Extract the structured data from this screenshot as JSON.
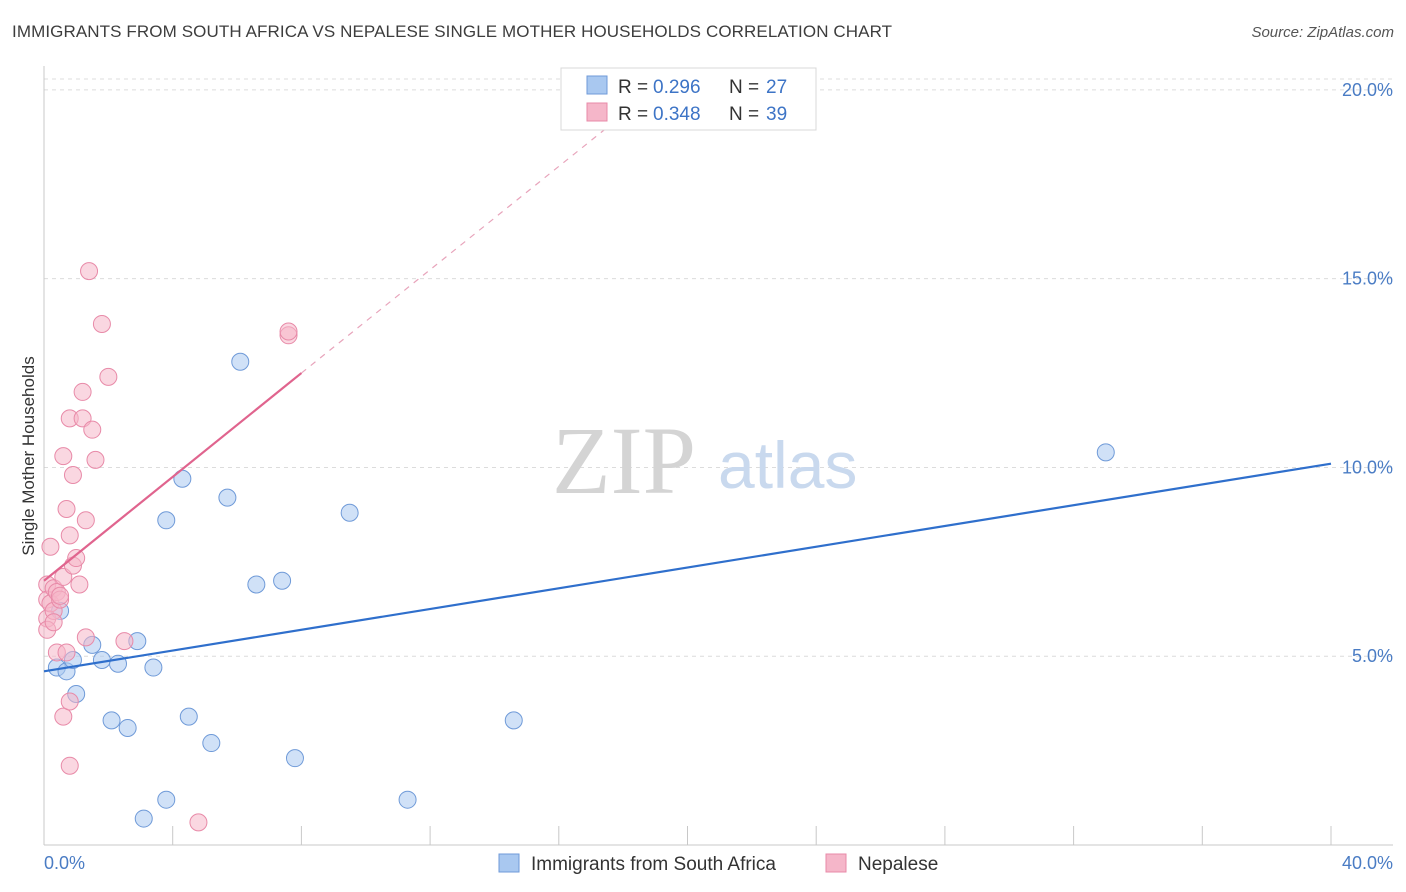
{
  "title": "IMMIGRANTS FROM SOUTH AFRICA VS NEPALESE SINGLE MOTHER HOUSEHOLDS CORRELATION CHART",
  "source": "Source: ZipAtlas.com",
  "watermark": {
    "zip": "ZIP",
    "atlas": "atlas"
  },
  "colors": {
    "blue_fill": "#a9c8f0",
    "blue_stroke": "#6f9ad8",
    "blue_line": "#2f6fcc",
    "pink_fill": "#f5b6c9",
    "pink_stroke": "#e88aa8",
    "pink_line": "#e0648e",
    "grid": "#dcdcdc",
    "tick_text": "#4a7cc4"
  },
  "chart_data": {
    "type": "scatter",
    "title": "IMMIGRANTS FROM SOUTH AFRICA VS NEPALESE SINGLE MOTHER HOUSEHOLDS CORRELATION CHART",
    "xlabel": "",
    "ylabel": "Single Mother Households",
    "xlim": [
      0,
      40
    ],
    "ylim": [
      0,
      20.5
    ],
    "x_tick_labels": [
      {
        "value": 0,
        "label": "0.0%"
      },
      {
        "value": 40,
        "label": "40.0%"
      }
    ],
    "x_minor_ticks": [
      4,
      8,
      12,
      16,
      20,
      24,
      28,
      32,
      36,
      40
    ],
    "y_ticks": [
      {
        "value": 5,
        "label": "5.0%"
      },
      {
        "value": 10,
        "label": "10.0%"
      },
      {
        "value": 15,
        "label": "15.0%"
      },
      {
        "value": 20,
        "label": "20.0%"
      }
    ],
    "legend_stats": [
      {
        "r_label": "R =",
        "r_value": "0.296",
        "n_label": "N =",
        "n_value": "27"
      },
      {
        "r_label": "R =",
        "r_value": "0.348",
        "n_label": "N =",
        "n_value": "39"
      }
    ],
    "series": [
      {
        "name": "Immigrants from South Africa",
        "color": "blue",
        "points": [
          [
            0.4,
            4.7
          ],
          [
            0.7,
            4.6
          ],
          [
            0.9,
            4.9
          ],
          [
            1.0,
            4.0
          ],
          [
            1.5,
            5.3
          ],
          [
            1.8,
            4.9
          ],
          [
            2.3,
            4.8
          ],
          [
            2.1,
            3.3
          ],
          [
            2.6,
            3.1
          ],
          [
            2.9,
            5.4
          ],
          [
            3.1,
            0.7
          ],
          [
            3.4,
            4.7
          ],
          [
            3.8,
            1.2
          ],
          [
            3.8,
            8.6
          ],
          [
            4.3,
            9.7
          ],
          [
            4.5,
            3.4
          ],
          [
            5.2,
            2.7
          ],
          [
            5.7,
            9.2
          ],
          [
            6.1,
            12.8
          ],
          [
            6.6,
            6.9
          ],
          [
            7.4,
            7.0
          ],
          [
            7.8,
            2.3
          ],
          [
            9.5,
            8.8
          ],
          [
            11.3,
            1.2
          ],
          [
            14.6,
            3.3
          ],
          [
            33.0,
            10.4
          ],
          [
            0.5,
            6.2
          ]
        ],
        "trend": {
          "x0": 0,
          "y0": 4.6,
          "x1": 40,
          "y1": 10.1
        }
      },
      {
        "name": "Nepalese",
        "color": "pink",
        "points": [
          [
            0.1,
            6.9
          ],
          [
            0.1,
            6.5
          ],
          [
            0.1,
            6.0
          ],
          [
            0.1,
            5.7
          ],
          [
            0.2,
            7.9
          ],
          [
            0.2,
            6.4
          ],
          [
            0.3,
            6.8
          ],
          [
            0.3,
            6.2
          ],
          [
            0.3,
            5.9
          ],
          [
            0.4,
            6.7
          ],
          [
            0.4,
            5.1
          ],
          [
            0.5,
            6.5
          ],
          [
            0.5,
            6.6
          ],
          [
            0.6,
            7.1
          ],
          [
            0.6,
            10.3
          ],
          [
            0.6,
            3.4
          ],
          [
            0.7,
            5.1
          ],
          [
            0.7,
            8.9
          ],
          [
            0.8,
            8.2
          ],
          [
            0.8,
            11.3
          ],
          [
            0.8,
            3.8
          ],
          [
            0.8,
            2.1
          ],
          [
            0.9,
            9.8
          ],
          [
            0.9,
            7.4
          ],
          [
            1.0,
            7.6
          ],
          [
            1.1,
            6.9
          ],
          [
            1.2,
            12.0
          ],
          [
            1.2,
            11.3
          ],
          [
            1.3,
            8.6
          ],
          [
            1.3,
            5.5
          ],
          [
            1.4,
            15.2
          ],
          [
            1.5,
            11.0
          ],
          [
            1.6,
            10.2
          ],
          [
            1.8,
            13.8
          ],
          [
            2.0,
            12.4
          ],
          [
            2.5,
            5.4
          ],
          [
            4.8,
            0.6
          ],
          [
            7.6,
            13.5
          ],
          [
            7.6,
            13.6
          ]
        ],
        "trend": {
          "x0": 0,
          "y0": 7.0,
          "x1": 8.0,
          "y1": 12.5
        },
        "trend_extension": {
          "x0": 8.0,
          "y0": 12.5,
          "x1": 17.5,
          "y1": 19.0
        }
      }
    ]
  }
}
